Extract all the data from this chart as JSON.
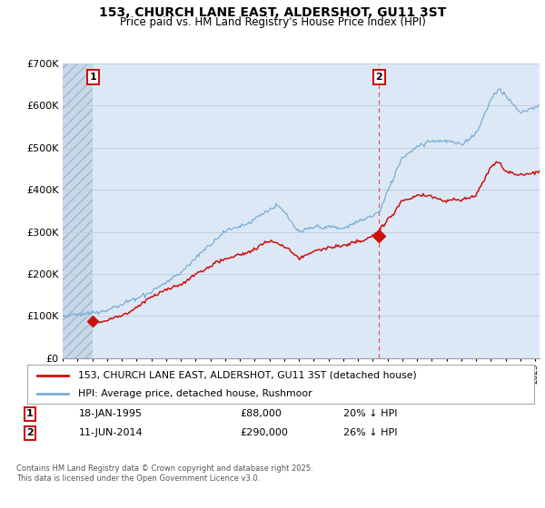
{
  "title": "153, CHURCH LANE EAST, ALDERSHOT, GU11 3ST",
  "subtitle": "Price paid vs. HM Land Registry's House Price Index (HPI)",
  "background_color": "#ffffff",
  "plot_bg_color": "#dce8f5",
  "hatch_bg_color": "#c8d8e8",
  "ylim": [
    0,
    700000
  ],
  "yticks": [
    0,
    100000,
    200000,
    300000,
    400000,
    500000,
    600000,
    700000
  ],
  "ytick_labels": [
    "£0",
    "£100K",
    "£200K",
    "£300K",
    "£400K",
    "£500K",
    "£600K",
    "£700K"
  ],
  "xlim_start": 1993.0,
  "xlim_end": 2025.3,
  "legend_line1": "153, CHURCH LANE EAST, ALDERSHOT, GU11 3ST (detached house)",
  "legend_line2": "HPI: Average price, detached house, Rushmoor",
  "sale1_date": 1995.04,
  "sale1_price": 88000,
  "sale1_label": "1",
  "sale2_date": 2014.44,
  "sale2_price": 290000,
  "sale2_label": "2",
  "footer": "Contains HM Land Registry data © Crown copyright and database right 2025.\nThis data is licensed under the Open Government Licence v3.0.",
  "hpi_color": "#7aadd4",
  "sale_color": "#cc1111",
  "dashed_line_color": "#dd4444",
  "grid_color": "#c0ccd8",
  "hatch_region_end": 1995.04
}
